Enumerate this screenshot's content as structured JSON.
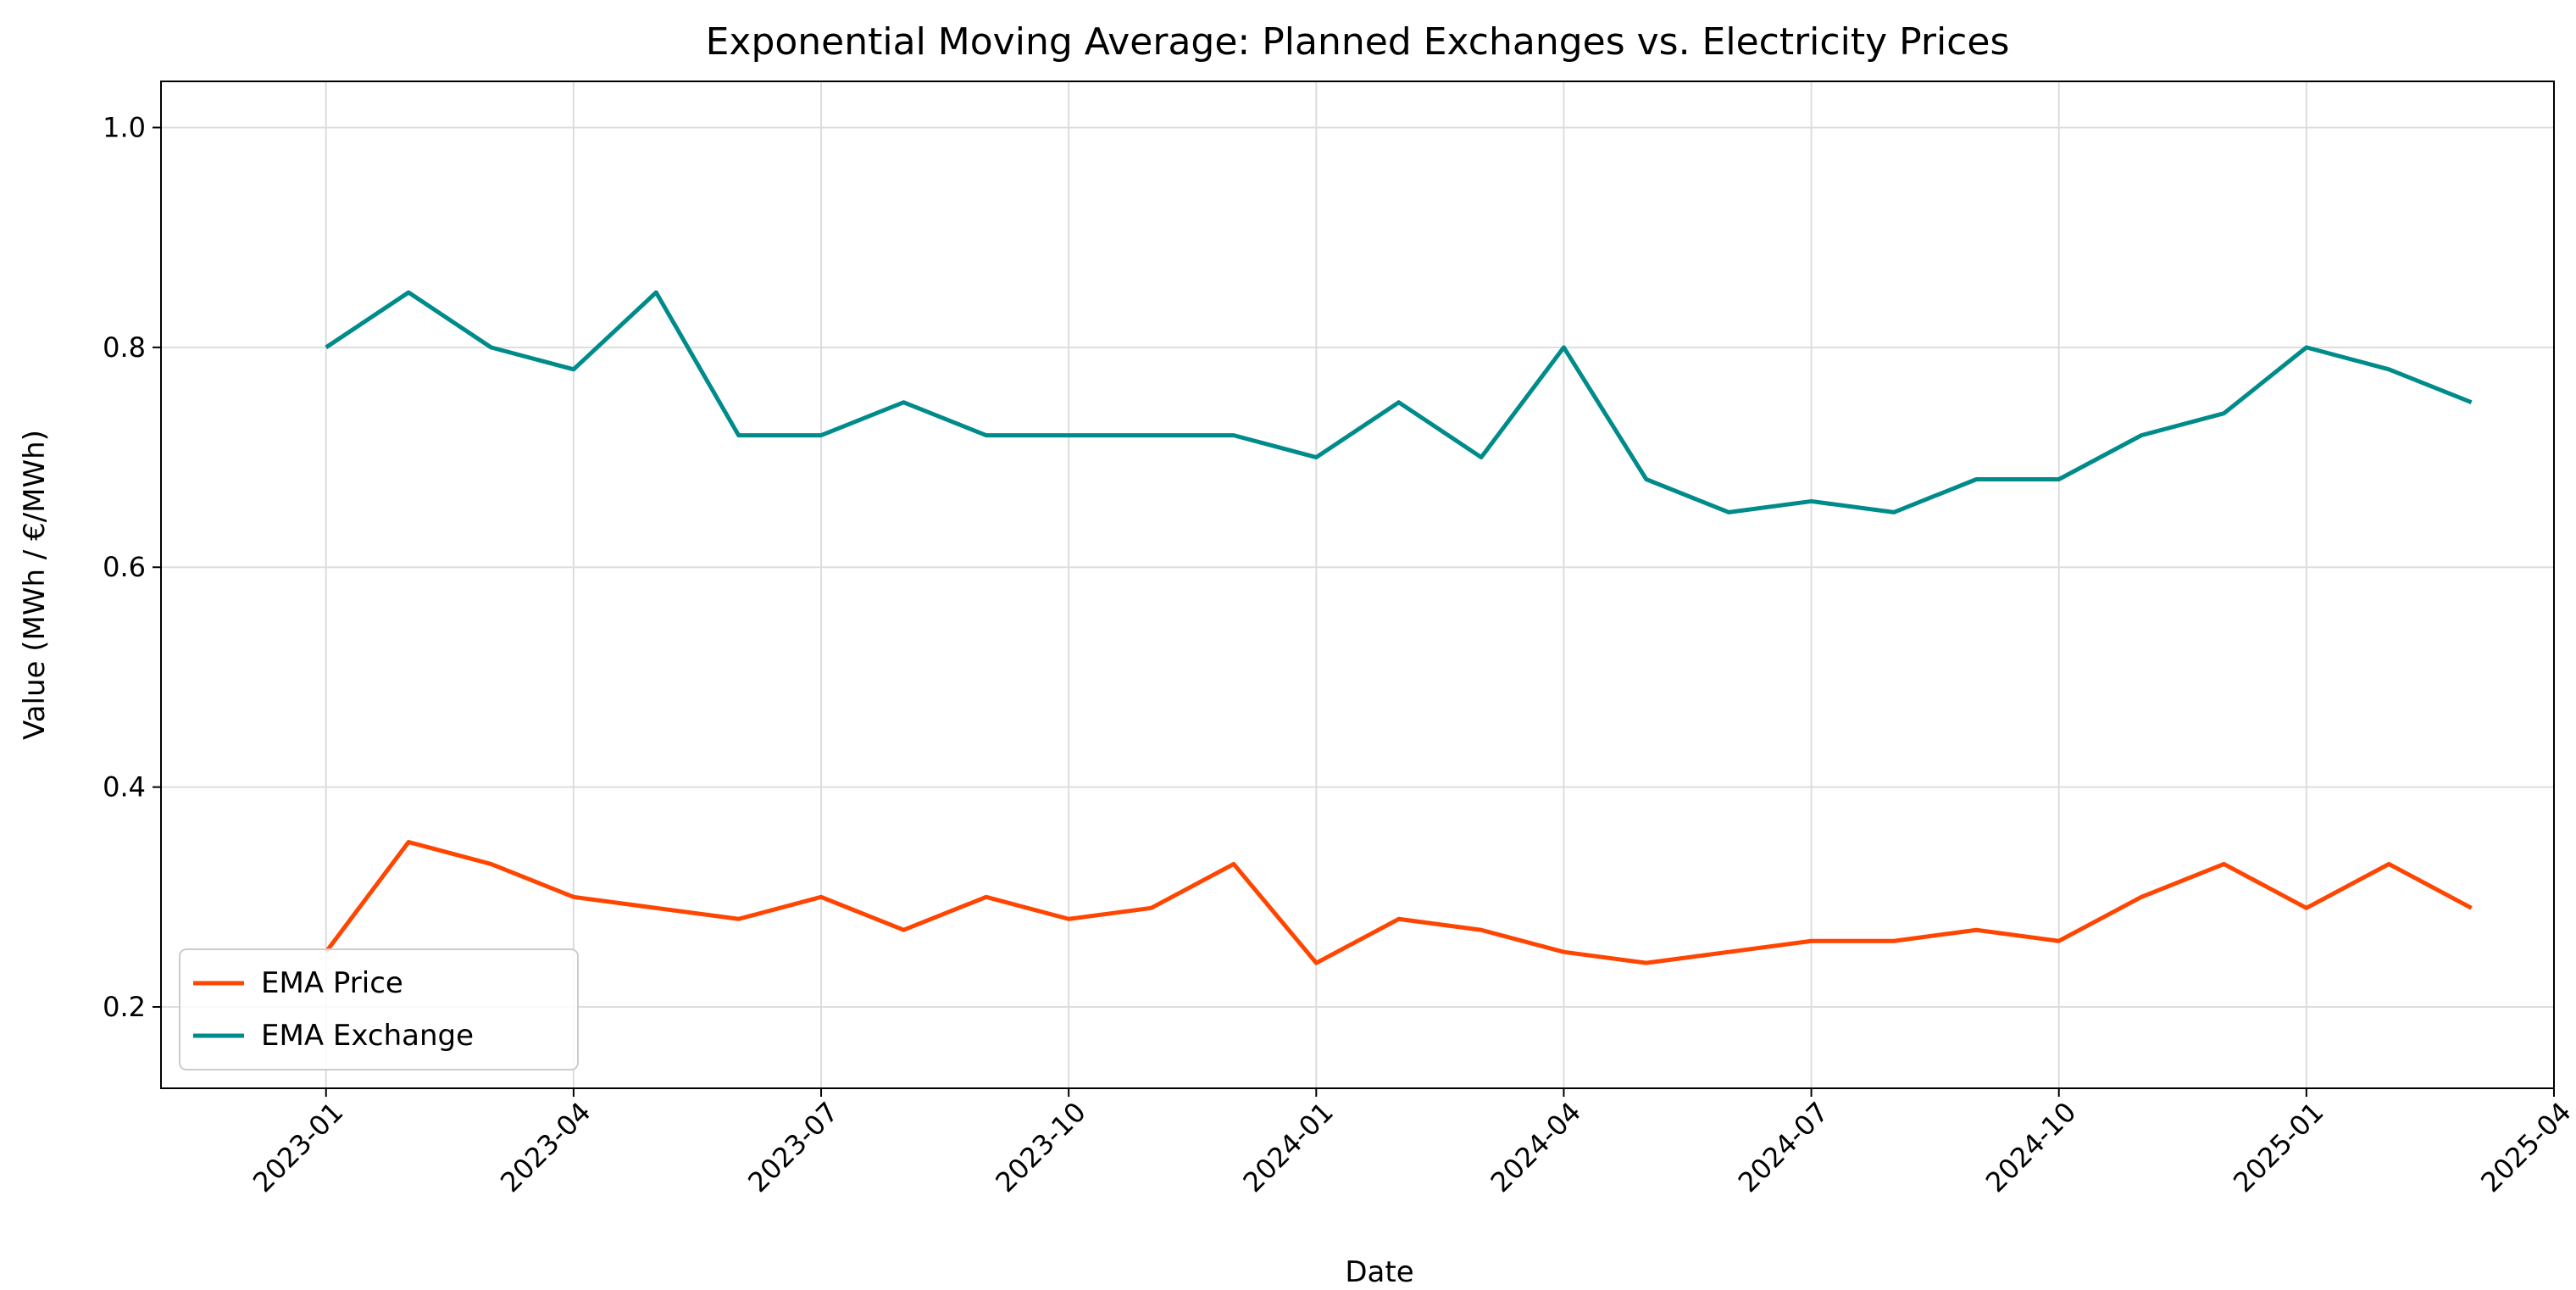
{
  "chart_data": {
    "type": "line",
    "title": "Exponential Moving Average: Planned Exchanges vs. Electricity Prices",
    "x_label": "Date",
    "y_label": "Value (MWh / €/MWh)",
    "x": [
      "2023-01",
      "2023-02",
      "2023-03",
      "2023-04",
      "2023-05",
      "2023-06",
      "2023-07",
      "2023-08",
      "2023-09",
      "2023-10",
      "2023-11",
      "2023-12",
      "2024-01",
      "2024-02",
      "2024-03",
      "2024-04",
      "2024-05",
      "2024-06",
      "2024-07",
      "2024-08",
      "2024-09",
      "2024-10",
      "2024-11",
      "2024-12",
      "2025-01",
      "2025-02",
      "2025-03"
    ],
    "series": [
      {
        "name": "EMA Price",
        "color": "#ff4500",
        "values": [
          0.25,
          0.35,
          0.33,
          0.3,
          0.29,
          0.28,
          0.3,
          0.27,
          0.3,
          0.28,
          0.29,
          0.33,
          0.24,
          0.28,
          0.27,
          0.25,
          0.24,
          0.25,
          0.26,
          0.26,
          0.27,
          0.26,
          0.3,
          0.33,
          0.29,
          0.33,
          0.29
        ]
      },
      {
        "name": "EMA Exchange",
        "color": "#008b8b",
        "values": [
          0.8,
          0.85,
          0.8,
          0.78,
          0.85,
          0.72,
          0.72,
          0.75,
          0.72,
          0.72,
          0.72,
          0.72,
          0.7,
          0.75,
          0.7,
          0.8,
          0.68,
          0.65,
          0.66,
          0.65,
          0.68,
          0.68,
          0.72,
          0.74,
          0.8,
          0.78,
          0.75
        ]
      }
    ],
    "xlim": [
      "2022-11",
      "2025-04"
    ],
    "xticks": [
      "2023-01",
      "2023-04",
      "2023-07",
      "2023-10",
      "2024-01",
      "2024-04",
      "2024-07",
      "2024-10",
      "2025-01",
      "2025-04"
    ],
    "ylim": [
      0.126,
      1.042
    ],
    "yticks": [
      0.2,
      0.4,
      0.6,
      0.8,
      {
        "value": 1,
        "label": "1.0"
      }
    ],
    "grid": true,
    "legend": "lower left"
  }
}
